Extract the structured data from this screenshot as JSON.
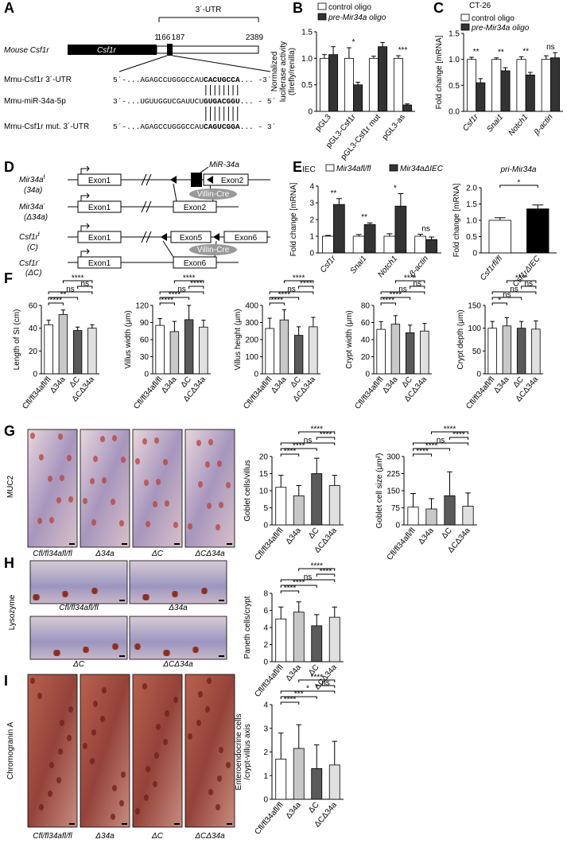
{
  "panel_labels": [
    "A",
    "B",
    "C",
    "D",
    "E",
    "F",
    "G",
    "H",
    "I"
  ],
  "panel_a": {
    "utr": "3´-UTR",
    "gene_label": "Mouse Csf1r",
    "gene_box": "Csf1r",
    "positions": [
      1,
      166,
      187,
      2389
    ],
    "rows": [
      {
        "label": "Mmu-Csf1r 3´-UTR",
        "seq": "5´-...AGAGCCUGGGCCAU",
        "site": "CACUGCCA",
        "end": "... -3´"
      },
      {
        "label": "Mmu-miR-34a-5p",
        "seq": "3´-...UGUUGGUCGAUUCU",
        "site": "GUGACGGU",
        "end": "... - 5´"
      },
      {
        "label": "Mmu-Csf1r mut. 3´-UTR",
        "seq": "5´-...AGAGCCUGGGCCAU",
        "site": "CAGUCGGA",
        "end": "... - 3´"
      }
    ]
  },
  "panel_d": {
    "alleles": [
      {
        "name": "Mir34a",
        "sup": "f",
        "short": "(34a)"
      },
      {
        "name": "Mir34a",
        "sup": "-",
        "short": "(Δ34a)"
      },
      {
        "name": "Csf1r",
        "sup": "f",
        "short": "(C)"
      },
      {
        "name": "Csf1r",
        "sup": "-",
        "short": "(ΔC)"
      }
    ],
    "exon1": "Exon1",
    "exon2": "Exon2",
    "exon5": "Exon5",
    "exon6": "Exon6",
    "mir": "MiR-34a",
    "cre": "Villin-Cre"
  },
  "micrographs": [
    {
      "stain": "MUC2",
      "captions": [
        "Cfl/fl34afl/fl",
        "Δ34a",
        "ΔC",
        "ΔCΔ34a"
      ]
    },
    {
      "stain": "Lysozyme",
      "captions": [
        "Cfl/fl34afl/fl",
        "Δ34a",
        "ΔC",
        "ΔCΔ34a"
      ]
    },
    {
      "stain": "Chromogranin A",
      "captions": [
        "Cfl/fl34afl/fl",
        "Δ34a",
        "ΔC",
        "ΔCΔ34a"
      ]
    }
  ],
  "chart_data": [
    {
      "type": "bar",
      "legend": "top",
      "ylabel": [
        "Normalized",
        "luciferase activity",
        "(firefly/renilla)"
      ],
      "categories": [
        "pGL3",
        "pGL3-Csf1r",
        "pGL3-Csf1r mut",
        "pGL3-as"
      ],
      "series": [
        {
          "name": "control oligo",
          "color": "#ffffff",
          "values": [
            1,
            1,
            1,
            1
          ],
          "errors": [
            0.07,
            0.2,
            0.04,
            0.05
          ]
        },
        {
          "name": "pre-Mir34a oligo",
          "color": "#333333",
          "values": [
            1.07,
            0.5,
            1.22,
            0.12
          ],
          "errors": [
            0.15,
            0.05,
            0.08,
            0.02
          ]
        }
      ],
      "significance": [
        null,
        "*",
        null,
        "***"
      ],
      "ylim": [
        0,
        1.5
      ],
      "yticks": [
        0,
        0.5,
        {
          "value": 1,
          "label": "1.0"
        },
        1.5
      ]
    },
    {
      "type": "bar",
      "title": "CT-26",
      "legend": "top",
      "ylabel": "Fold change [mRNA]",
      "category_style": "italic",
      "categories": [
        "Csf1r",
        "Snai1",
        "Notch1",
        "β-actin"
      ],
      "series": [
        {
          "name": "control oligo",
          "color": "#ffffff",
          "values": [
            1,
            1,
            1,
            1
          ],
          "errors": [
            0.04,
            0.03,
            0.05,
            0.07
          ]
        },
        {
          "name": "pre-Mir34a oligo",
          "color": "#333333",
          "values": [
            0.55,
            0.78,
            0.7,
            1.03
          ],
          "errors": [
            0.08,
            0.06,
            0.05,
            0.1
          ]
        }
      ],
      "significance": [
        "**",
        "**",
        "**",
        "ns"
      ],
      "ylim": [
        0,
        1.5
      ],
      "yticks": [
        {
          "value": 0,
          "label": "0.0"
        },
        0.5,
        {
          "value": 1,
          "label": "1.0"
        },
        1.5
      ]
    },
    {
      "type": "bar",
      "title": "IEC",
      "legend": "top",
      "ylabel": "Fold change [mRNA]",
      "category_style": "italic",
      "categories": [
        "Csf1r",
        "Snai1",
        "Notch1",
        "β-actin"
      ],
      "series": [
        {
          "name": "Mir34afl/fl",
          "color": "#ffffff",
          "values": [
            1,
            1,
            1,
            1
          ],
          "errors": [
            0.05,
            0.1,
            0.15,
            0.12
          ]
        },
        {
          "name": "Mir34aΔIEC",
          "color": "#333333",
          "values": [
            2.9,
            1.7,
            2.8,
            0.8
          ],
          "errors": [
            0.35,
            0.1,
            0.75,
            0.15
          ]
        }
      ],
      "significance": [
        "**",
        "**",
        "*",
        "ns"
      ],
      "ylim": [
        0,
        4
      ],
      "yticks": [
        0,
        1,
        2,
        3,
        4
      ]
    },
    {
      "type": "bar",
      "title": "pri-Mir34a",
      "ylabel": "Fold change [mRNA]",
      "category_style": "italic",
      "categories": [
        "Csf1rfl/fl",
        "Csf1rΔIEC"
      ],
      "values": [
        1,
        1.35
      ],
      "errors": [
        0.08,
        0.12
      ],
      "colors": [
        "#ffffff",
        "#000000"
      ],
      "brackets": [
        "*"
      ],
      "ylim": [
        0,
        2
      ],
      "yticks": [
        0,
        0.5,
        {
          "value": 1,
          "label": "1.0"
        },
        1.5,
        {
          "value": 2,
          "label": "2.0"
        }
      ]
    },
    {
      "type": "bar",
      "ylabel": "Length of SI (cm)",
      "categories": [
        "Cfl/fl34afl/fl",
        "Δ34a",
        "ΔC",
        "ΔCΔ34a"
      ],
      "values": [
        43,
        52,
        38,
        40
      ],
      "errors": [
        4,
        4,
        3,
        3
      ],
      "colors": [
        "#ffffff",
        "#c8c8c8",
        "#5a5a5a",
        "#e0e0e0"
      ],
      "brackets": [
        "****",
        "**",
        "ns",
        "ns",
        "****"
      ],
      "ylim": [
        0,
        60
      ],
      "yticks": [
        0,
        20,
        40,
        60
      ]
    },
    {
      "type": "bar",
      "ylabel": "Villus width (μm)",
      "categories": [
        "Cfl/fl34afl/fl",
        "Δ34a",
        "ΔC",
        "ΔCΔ34a"
      ],
      "values": [
        85,
        74,
        95,
        82
      ],
      "errors": [
        12,
        18,
        25,
        12
      ],
      "colors": [
        "#ffffff",
        "#c8c8c8",
        "#5a5a5a",
        "#e0e0e0"
      ],
      "brackets": [
        "****",
        "****",
        "ns",
        "****",
        "****"
      ],
      "ylim": [
        0,
        120
      ],
      "yticks": [
        0,
        30,
        60,
        90,
        120
      ]
    },
    {
      "type": "bar",
      "ylabel": "Villus height (μm)",
      "categories": [
        "Cfl/fl34afl/fl",
        "Δ34a",
        "ΔC",
        "ΔCΔ34a"
      ],
      "values": [
        265,
        315,
        225,
        275
      ],
      "errors": [
        60,
        60,
        50,
        55
      ],
      "colors": [
        "#ffffff",
        "#c8c8c8",
        "#5a5a5a",
        "#e0e0e0"
      ],
      "brackets": [
        "****",
        "****",
        "ns",
        "****",
        "****"
      ],
      "ylim": [
        0,
        400
      ],
      "yticks": [
        0,
        100,
        200,
        300,
        400
      ]
    },
    {
      "type": "bar",
      "ylabel": "Crypt width (μm)",
      "categories": [
        "Cfl/fl34afl/fl",
        "Δ34a",
        "ΔC",
        "ΔCΔ34a"
      ],
      "values": [
        52,
        58,
        48,
        50
      ],
      "errors": [
        9,
        10,
        9,
        9
      ],
      "colors": [
        "#ffffff",
        "#c8c8c8",
        "#5a5a5a",
        "#e0e0e0"
      ],
      "brackets": [
        "****",
        "****",
        "ns",
        "ns",
        "****"
      ],
      "ylim": [
        0,
        80
      ],
      "yticks": [
        0,
        20,
        40,
        60,
        80
      ]
    },
    {
      "type": "bar",
      "ylabel": "Crypt depth (μm)",
      "categories": [
        "Cfl/fl34afl/fl",
        "Δ34a",
        "ΔC",
        "ΔCΔ34a"
      ],
      "values": [
        100,
        105,
        100,
        98
      ],
      "errors": [
        15,
        18,
        15,
        18
      ],
      "colors": [
        "#ffffff",
        "#c8c8c8",
        "#5a5a5a",
        "#e0e0e0"
      ],
      "brackets": [
        "*",
        "ns",
        "ns",
        "ns",
        "****"
      ],
      "ylim": [
        0,
        150
      ],
      "yticks": [
        0,
        50,
        100,
        150
      ]
    },
    {
      "type": "bar",
      "ylabel": "Goblet cells/villus",
      "categories": [
        "Cfl/fl34afl/fl",
        "Δ34a",
        "ΔC",
        "ΔCΔ34a"
      ],
      "values": [
        11,
        8.5,
        15,
        11.5
      ],
      "errors": [
        3.5,
        3,
        4.5,
        3
      ],
      "colors": [
        "#ffffff",
        "#c8c8c8",
        "#5a5a5a",
        "#e0e0e0"
      ],
      "brackets": [
        "****",
        "****",
        "ns",
        "****",
        "****"
      ],
      "ylim": [
        0,
        20
      ],
      "yticks": [
        0,
        5,
        10,
        15,
        20
      ]
    },
    {
      "type": "bar",
      "ylabel": "Goblet cell size (μm²)",
      "categories": [
        "Cfl/fl34afl/fl",
        "Δ34a",
        "ΔC",
        "ΔCΔ34a"
      ],
      "values": [
        78,
        70,
        128,
        82
      ],
      "errors": [
        60,
        45,
        105,
        58
      ],
      "colors": [
        "#ffffff",
        "#c8c8c8",
        "#5a5a5a",
        "#e0e0e0"
      ],
      "brackets": [
        "****",
        "****",
        "ns",
        "****",
        "****"
      ],
      "ylim": [
        0,
        300
      ],
      "yticks": [
        0,
        75,
        150,
        225,
        300
      ]
    },
    {
      "type": "bar",
      "ylabel": "Paneth cells/crypt",
      "categories": [
        "Cfl/fl34afl/fl",
        "Δ34a",
        "ΔC",
        "ΔCΔ34a"
      ],
      "values": [
        5,
        5.8,
        4.2,
        5.2
      ],
      "errors": [
        1.4,
        1.2,
        1.3,
        1.2
      ],
      "colors": [
        "#ffffff",
        "#c8c8c8",
        "#5a5a5a",
        "#e0e0e0"
      ],
      "brackets": [
        "****",
        "****",
        "ns",
        "****",
        "****"
      ],
      "ylim": [
        0,
        8
      ],
      "yticks": [
        0,
        2,
        4,
        6,
        8
      ]
    },
    {
      "type": "bar",
      "ylabel": [
        "Enteroendocrine cells",
        "/crypt-villus axis"
      ],
      "categories": [
        "Cfl/fl34afl/fl",
        "Δ34a",
        "ΔC",
        "ΔCΔ34a"
      ],
      "values": [
        1.7,
        2.15,
        1.3,
        1.45
      ],
      "errors": [
        1.1,
        1,
        1,
        1
      ],
      "colors": [
        "#ffffff",
        "#c8c8c8",
        "#5a5a5a",
        "#e0e0e0"
      ],
      "brackets": [
        "****",
        "***",
        "*",
        "ns",
        "****"
      ],
      "ylim": [
        0,
        4
      ],
      "yticks": [
        0,
        1,
        2,
        3,
        4
      ]
    }
  ]
}
